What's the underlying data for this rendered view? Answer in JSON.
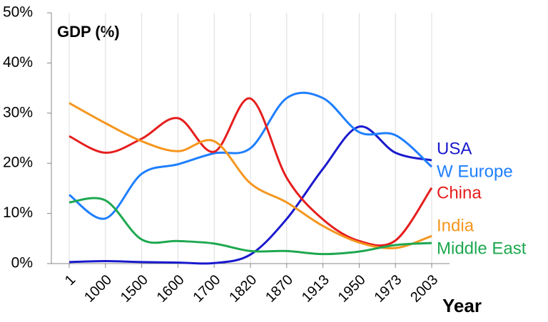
{
  "chart_data": {
    "type": "line",
    "title": "GDP (%)",
    "x_label": "Year",
    "categories": [
      "1",
      "1000",
      "1500",
      "1600",
      "1700",
      "1820",
      "1870",
      "1913",
      "1950",
      "1973",
      "2003"
    ],
    "series": [
      {
        "name": "USA",
        "color": "#1a1acd",
        "values": [
          0.3,
          0.5,
          0.3,
          0.2,
          0.1,
          1.8,
          8.9,
          18.9,
          27.3,
          22.1,
          20.6
        ]
      },
      {
        "name": "W Europe",
        "color": "#1f7fff",
        "values": [
          13.7,
          9.0,
          17.9,
          19.8,
          22.0,
          23.0,
          33.0,
          33.0,
          26.2,
          25.6,
          19.3
        ]
      },
      {
        "name": "China",
        "color": "#e61e1e",
        "values": [
          25.4,
          22.1,
          24.9,
          29.0,
          22.3,
          32.9,
          17.1,
          8.8,
          4.5,
          4.6,
          15.1
        ]
      },
      {
        "name": "India",
        "color": "#f5961e",
        "values": [
          32.0,
          28.0,
          24.4,
          22.4,
          24.4,
          16.0,
          12.2,
          7.5,
          4.2,
          3.1,
          5.5
        ]
      },
      {
        "name": "Middle East",
        "color": "#1ea850",
        "values": [
          12.2,
          12.6,
          4.8,
          4.5,
          4.0,
          2.5,
          2.5,
          1.9,
          2.4,
          3.7,
          4.1
        ]
      }
    ],
    "ylim": [
      0,
      50
    ],
    "yticks": [
      {
        "value": 0,
        "label": "0%"
      },
      {
        "value": 10,
        "label": "10%"
      },
      {
        "value": 20,
        "label": "20%"
      },
      {
        "value": 30,
        "label": "30%"
      },
      {
        "value": 40,
        "label": "40%"
      },
      {
        "value": 50,
        "label": "50%"
      }
    ],
    "grid": true
  }
}
